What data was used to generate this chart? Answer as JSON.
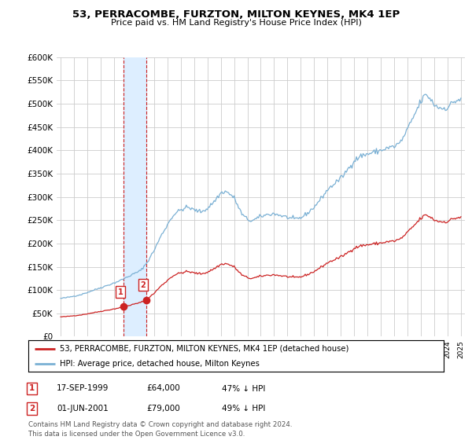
{
  "title": "53, PERRACOMBE, FURZTON, MILTON KEYNES, MK4 1EP",
  "subtitle": "Price paid vs. HM Land Registry's House Price Index (HPI)",
  "bg_color": "#ffffff",
  "grid_color": "#cccccc",
  "hpi_color": "#7ab0d4",
  "price_color": "#cc2222",
  "marker_color": "#cc2222",
  "shade_color": "#ddeeff",
  "purchases": [
    {
      "date_num": 1999.72,
      "price": 64000,
      "label": "1"
    },
    {
      "date_num": 2001.42,
      "price": 79000,
      "label": "2"
    }
  ],
  "legend_entry1": "53, PERRACOMBE, FURZTON, MILTON KEYNES, MK4 1EP (detached house)",
  "legend_entry2": "HPI: Average price, detached house, Milton Keynes",
  "table_rows": [
    {
      "num": "1",
      "date": "17-SEP-1999",
      "price": "£64,000",
      "hpi": "47% ↓ HPI"
    },
    {
      "num": "2",
      "date": "01-JUN-2001",
      "price": "£79,000",
      "hpi": "49% ↓ HPI"
    }
  ],
  "footer": "Contains HM Land Registry data © Crown copyright and database right 2024.\nThis data is licensed under the Open Government Licence v3.0.",
  "ylim": [
    0,
    600000
  ],
  "xlim_start": 1994.7,
  "xlim_end": 2025.3
}
